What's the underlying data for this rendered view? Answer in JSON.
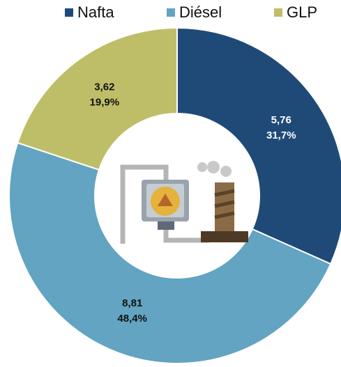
{
  "chart_data": {
    "type": "donut",
    "categories": [
      "Nafta",
      "Diésel",
      "GLP"
    ],
    "values": [
      5.76,
      8.81,
      3.62
    ],
    "value_labels": [
      "5,76",
      "8,81",
      "3,62"
    ],
    "percentages": [
      31.7,
      48.4,
      19.9
    ],
    "percentage_labels": [
      "31,7%",
      "48,4%",
      "19,9%"
    ],
    "colors": [
      "#1f4a78",
      "#62a4c1",
      "#bfbe68"
    ],
    "legend": "top"
  }
}
